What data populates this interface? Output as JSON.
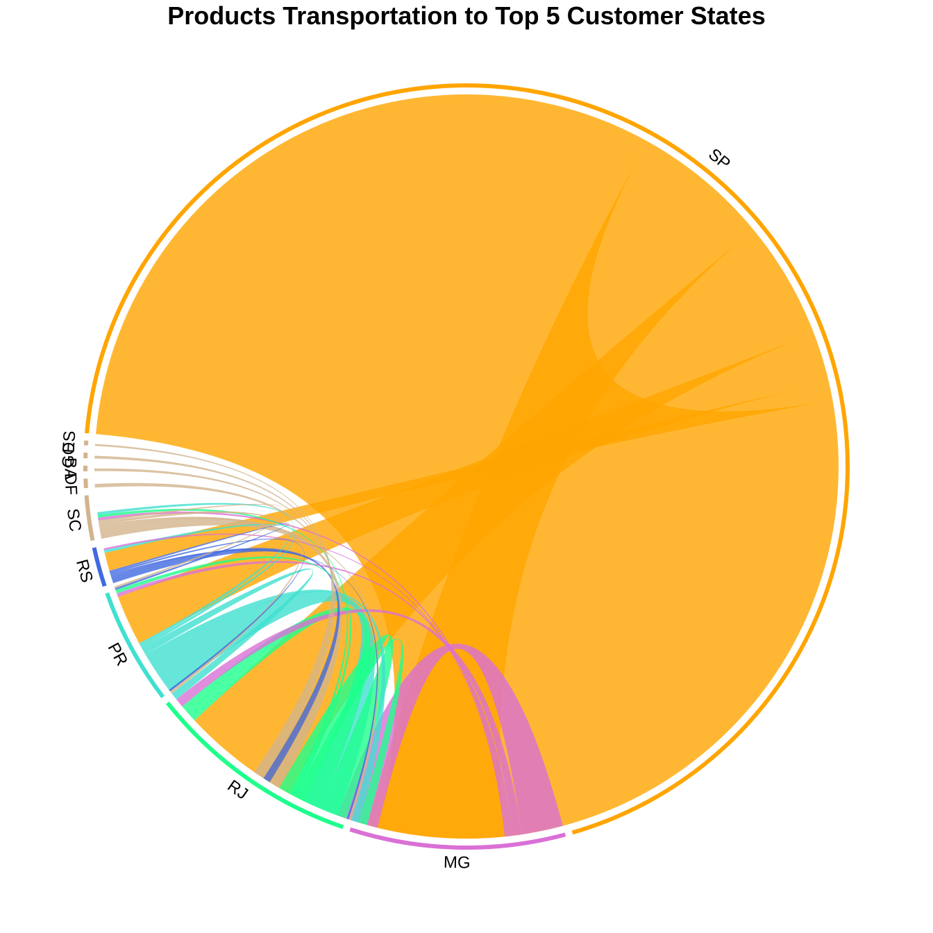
{
  "chart_data": {
    "type": "chord",
    "title": "Products Transportation to Top 5 Customer States",
    "sectors": [
      {
        "name": "SP",
        "color": "#FFA500",
        "size": 1745
      },
      {
        "name": "MG",
        "color": "#DA70D6",
        "size": 230
      },
      {
        "name": "RJ",
        "color": "#1EFF8C",
        "size": 230
      },
      {
        "name": "PR",
        "color": "#40E0D0",
        "size": 125
      },
      {
        "name": "RS",
        "color": "#4169E1",
        "size": 42
      },
      {
        "name": "SC",
        "color": "#D2B48C",
        "size": 48
      },
      {
        "name": "DF",
        "color": "#D2B48C",
        "size": 10
      },
      {
        "name": "BA",
        "color": "#D2B48C",
        "size": 6
      },
      {
        "name": "GO",
        "color": "#D2B48C",
        "size": 6
      },
      {
        "name": "ES",
        "color": "#D2B48C",
        "size": 5
      }
    ],
    "flows": [
      {
        "from": "SP",
        "to": "SP",
        "value": 800
      },
      {
        "from": "SP",
        "to": "MG",
        "value": 150
      },
      {
        "from": "SP",
        "to": "RJ",
        "value": 130
      },
      {
        "from": "SP",
        "to": "PR",
        "value": 55
      },
      {
        "from": "SP",
        "to": "RS",
        "value": 20
      },
      {
        "from": "MG",
        "to": "SP",
        "value": 45
      },
      {
        "from": "MG",
        "to": "RJ",
        "value": 10
      },
      {
        "from": "MG",
        "to": "PR",
        "value": 4
      },
      {
        "from": "MG",
        "to": "RS",
        "value": 2
      },
      {
        "from": "MG",
        "to": "SC",
        "value": 3
      },
      {
        "from": "RJ",
        "to": "SP",
        "value": 30
      },
      {
        "from": "RJ",
        "to": "RJ",
        "value": 20
      },
      {
        "from": "RJ",
        "to": "MG",
        "value": 10
      },
      {
        "from": "RJ",
        "to": "PR",
        "value": 4
      },
      {
        "from": "RJ",
        "to": "SC",
        "value": 3
      },
      {
        "from": "PR",
        "to": "SP",
        "value": 40
      },
      {
        "from": "PR",
        "to": "MG",
        "value": 8
      },
      {
        "from": "PR",
        "to": "RJ",
        "value": 8
      },
      {
        "from": "PR",
        "to": "RS",
        "value": 3
      },
      {
        "from": "PR",
        "to": "SC",
        "value": 3
      },
      {
        "from": "RS",
        "to": "SP",
        "value": 8
      },
      {
        "from": "RS",
        "to": "MG",
        "value": 2
      },
      {
        "from": "RS",
        "to": "RJ",
        "value": 2
      },
      {
        "from": "RS",
        "to": "PR",
        "value": 2
      },
      {
        "from": "SC",
        "to": "SP",
        "value": 12
      },
      {
        "from": "SC",
        "to": "MG",
        "value": 3
      },
      {
        "from": "SC",
        "to": "RJ",
        "value": 3
      },
      {
        "from": "SC",
        "to": "PR",
        "value": 2
      },
      {
        "from": "DF",
        "to": "SP",
        "value": 4
      },
      {
        "from": "BA",
        "to": "SP",
        "value": 3
      },
      {
        "from": "GO",
        "to": "SP",
        "value": 3
      },
      {
        "from": "ES",
        "to": "SP",
        "value": 2
      }
    ],
    "legend": false,
    "grid": false
  }
}
